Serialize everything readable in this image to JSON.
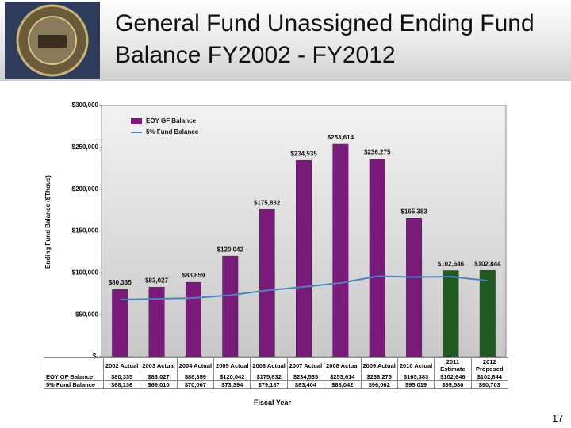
{
  "chart_data": {
    "type": "bar",
    "title": "General Fund Unassigned Ending Fund Balance FY2002 - FY2012",
    "y_label": "Ending Fund Balance ($Thous)",
    "x_label": "Fiscal Year",
    "page_number": "17",
    "categories": [
      "2002 Actual",
      "2003 Actual",
      "2004 Actual",
      "2005 Actual",
      "2006 Actual",
      "2007 Actual",
      "2008 Actual",
      "2009 Actual",
      "2010 Actual",
      "2011 Estimate",
      "2012 Proposed"
    ],
    "series": [
      {
        "name": "EOY GF Balance",
        "kind": "bar",
        "color": "#7a1a7a",
        "bar_colors": [
          "#7a1a7a",
          "#7a1a7a",
          "#7a1a7a",
          "#7a1a7a",
          "#7a1a7a",
          "#7a1a7a",
          "#7a1a7a",
          "#7a1a7a",
          "#7a1a7a",
          "#1f5a1f",
          "#1f5a1f"
        ],
        "values": [
          80335,
          83027,
          88859,
          120042,
          175832,
          234535,
          253614,
          236275,
          165383,
          102646,
          102844
        ],
        "value_labels": [
          "$80,335",
          "$83,027",
          "$88,859",
          "$120,042",
          "$175,832",
          "$234,535",
          "$253,614",
          "$236,275",
          "$165,383",
          "$102,646",
          "$102,844"
        ]
      },
      {
        "name": "5% Fund Balance",
        "kind": "line",
        "color": "#4f81bd",
        "values": [
          68136,
          69010,
          70067,
          73394,
          79187,
          83404,
          88042,
          96062,
          95019,
          95580,
          90703
        ],
        "value_labels": [
          "$68,136",
          "$69,010",
          "$70,067",
          "$73,394",
          "$79,187",
          "$83,404",
          "$88,042",
          "$96,062",
          "$95,019",
          "$95,580",
          "$90,703"
        ]
      }
    ],
    "ylim": [
      0,
      300000
    ],
    "yticks": [
      {
        "value": 0,
        "label": "$-"
      },
      {
        "value": 50000,
        "label": "$50,000"
      },
      {
        "value": 100000,
        "label": "$100,000"
      },
      {
        "value": 150000,
        "label": "$150,000"
      },
      {
        "value": 200000,
        "label": "$200,000"
      },
      {
        "value": 250000,
        "label": "$250,000"
      },
      {
        "value": 300000,
        "label": "$300,000"
      }
    ]
  }
}
